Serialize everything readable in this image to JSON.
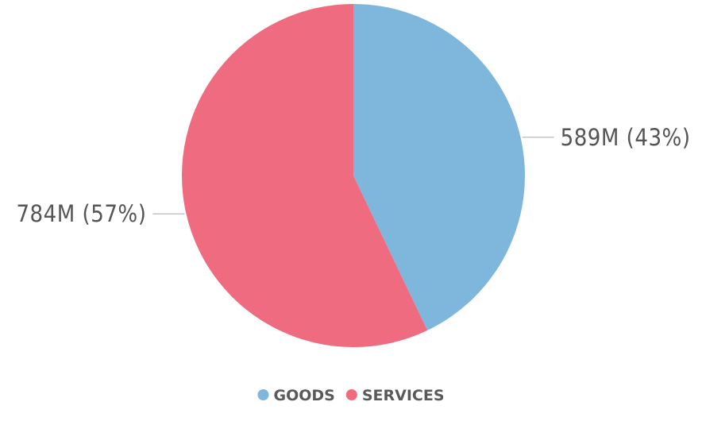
{
  "chart_data": {
    "type": "pie",
    "categories": [
      "GOODS",
      "SERVICES"
    ],
    "values": [
      589,
      784
    ],
    "percentages": [
      43,
      57
    ],
    "data_labels": [
      "589M (43%)",
      "784M (57%)"
    ],
    "colors": [
      "#7fb6dc",
      "#ef6b7f"
    ],
    "legend_position": "bottom-center",
    "start_angle_deg": 0,
    "direction": "clockwise"
  },
  "legend": {
    "items": [
      {
        "label": "GOODS",
        "color": "#7fb6dc"
      },
      {
        "label": "SERVICES",
        "color": "#ef6b7f"
      }
    ]
  }
}
